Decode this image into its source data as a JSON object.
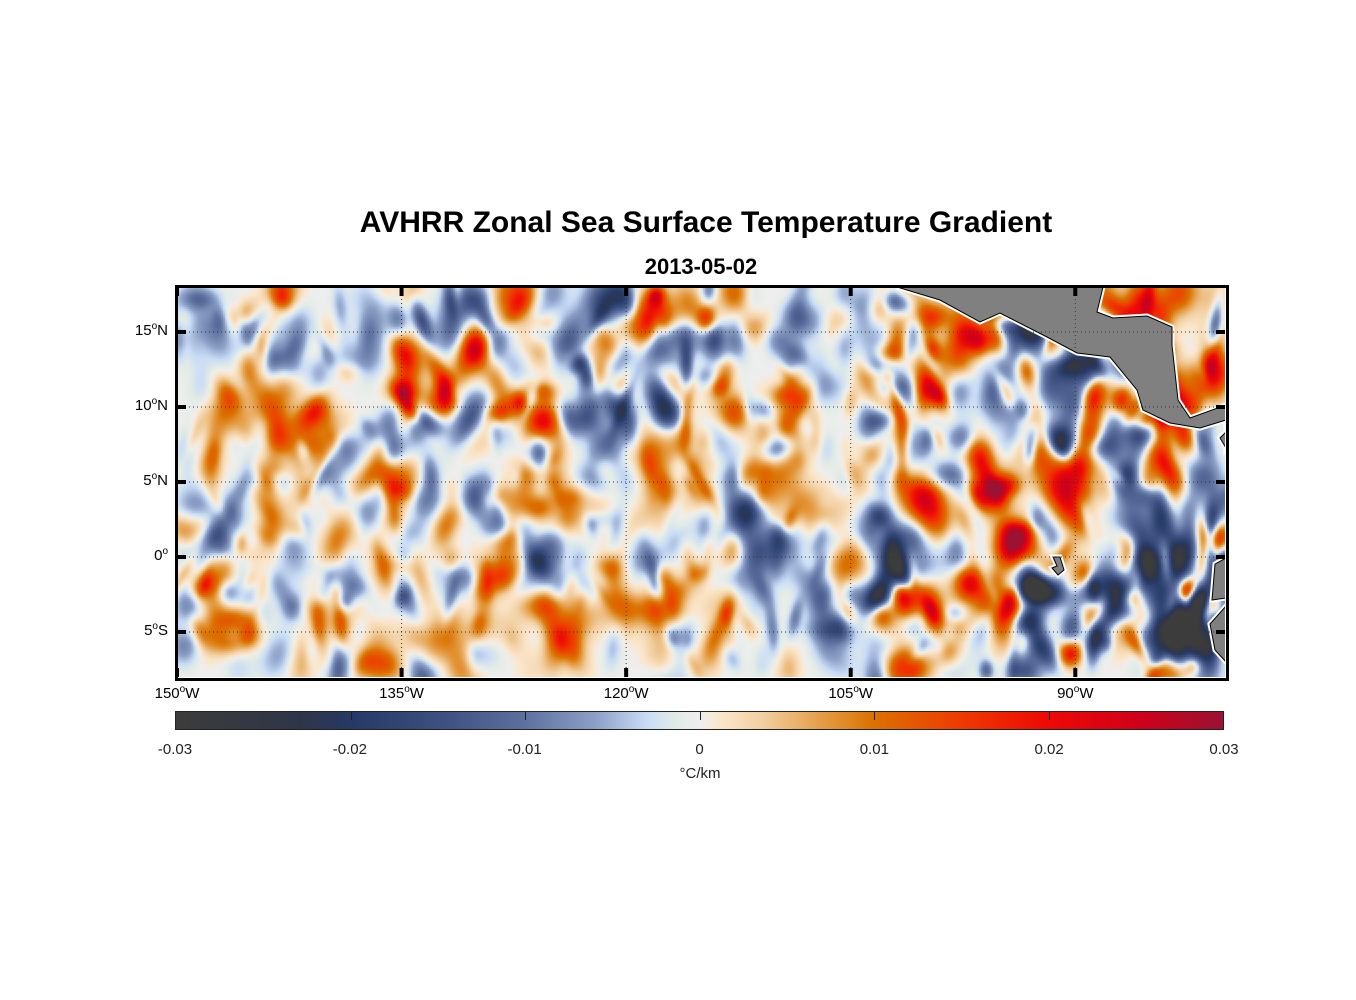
{
  "chart_data": {
    "type": "heatmap",
    "title": "AVHRR Zonal Sea Surface Temperature Gradient",
    "subtitle": "2013-05-02",
    "units_label": "°C/km",
    "lon_range": [
      -150,
      -80
    ],
    "lat_range": [
      -8,
      18
    ],
    "grid": true,
    "x_ticks": [
      {
        "value": -150,
        "num": "150",
        "deg": "o",
        "hem": "W"
      },
      {
        "value": -135,
        "num": "135",
        "deg": "o",
        "hem": "W"
      },
      {
        "value": -120,
        "num": "120",
        "deg": "o",
        "hem": "W"
      },
      {
        "value": -105,
        "num": "105",
        "deg": "o",
        "hem": "W"
      },
      {
        "value": -90,
        "num": "90",
        "deg": "o",
        "hem": "W"
      }
    ],
    "y_ticks": [
      {
        "value": 15,
        "num": "15",
        "deg": "o",
        "hem": "N"
      },
      {
        "value": 10,
        "num": "10",
        "deg": "o",
        "hem": "N"
      },
      {
        "value": 5,
        "num": "5",
        "deg": "o",
        "hem": "N"
      },
      {
        "value": 0,
        "num": "0",
        "deg": "o",
        "hem": ""
      },
      {
        "value": -5,
        "num": "5",
        "deg": "o",
        "hem": "S"
      }
    ],
    "colorbar": {
      "range": [
        -0.03,
        0.03
      ],
      "ticks": [
        -0.03,
        -0.02,
        -0.01,
        0,
        0.01,
        0.02,
        0.03
      ],
      "tick_labels": [
        "-0.03",
        "-0.02",
        "-0.01",
        "0",
        "0.01",
        "0.02",
        "0.03"
      ],
      "placement": "bottom"
    },
    "colors": {
      "land": "#808080",
      "neg_strong": "#253a66",
      "neutral": "#eeeeee",
      "pos_mid": "#db7200",
      "pos_strong": "#ee0a05"
    }
  }
}
